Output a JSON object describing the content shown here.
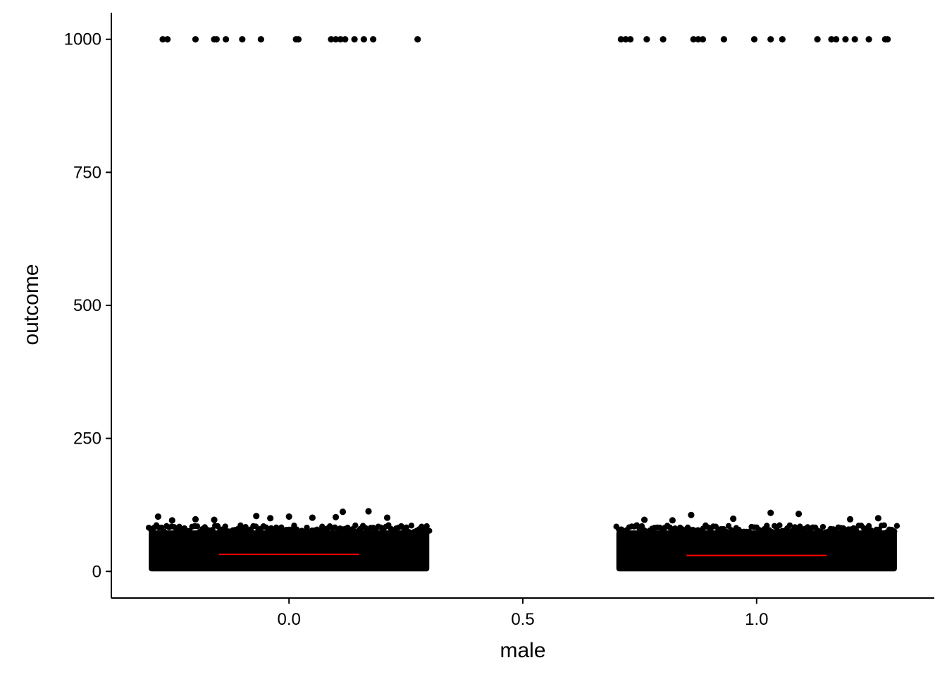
{
  "chart_data": {
    "type": "scatter",
    "title": "",
    "xlabel": "male",
    "ylabel": "outcome",
    "xlim": [
      -0.38,
      1.38
    ],
    "ylim": [
      -50,
      1050
    ],
    "x_ticks": [
      {
        "value": 0.0,
        "label": "0.0"
      },
      {
        "value": 0.5,
        "label": "0.5"
      },
      {
        "value": 1.0,
        "label": "1.0"
      }
    ],
    "y_ticks": [
      {
        "value": 0,
        "label": "0"
      },
      {
        "value": 250,
        "label": "250"
      },
      {
        "value": 500,
        "label": "500"
      },
      {
        "value": 750,
        "label": "750"
      },
      {
        "value": 1000,
        "label": "1000"
      }
    ],
    "grid": false,
    "groups": [
      {
        "x_center": 0,
        "jitter_range": [
          -0.3,
          0.3
        ],
        "dense_range": [
          0,
          85
        ],
        "mean": 32,
        "mean_line_range": [
          -0.15,
          0.15
        ],
        "outlier_y": 1000,
        "outlier_x": [
          -0.27,
          -0.26,
          -0.2,
          -0.16,
          -0.155,
          -0.135,
          -0.1,
          -0.06,
          0.015,
          0.02,
          0.09,
          0.1,
          0.11,
          0.12,
          0.14,
          0.16,
          0.18,
          0.275
        ],
        "upper_points": [
          {
            "x": -0.28,
            "y": 103
          },
          {
            "x": -0.25,
            "y": 96
          },
          {
            "x": -0.2,
            "y": 98
          },
          {
            "x": -0.16,
            "y": 97
          },
          {
            "x": -0.07,
            "y": 104
          },
          {
            "x": -0.04,
            "y": 100
          },
          {
            "x": 0.0,
            "y": 103
          },
          {
            "x": 0.05,
            "y": 101
          },
          {
            "x": 0.1,
            "y": 102
          },
          {
            "x": 0.115,
            "y": 112
          },
          {
            "x": 0.17,
            "y": 113
          },
          {
            "x": 0.21,
            "y": 101
          }
        ]
      },
      {
        "x_center": 1,
        "jitter_range": [
          0.7,
          1.3
        ],
        "dense_range": [
          0,
          85
        ],
        "mean": 30,
        "mean_line_range": [
          0.85,
          1.15
        ],
        "outlier_y": 1000,
        "outlier_x": [
          0.71,
          0.72,
          0.73,
          0.765,
          0.8,
          0.865,
          0.875,
          0.885,
          0.93,
          0.995,
          1.03,
          1.055,
          1.13,
          1.16,
          1.17,
          1.19,
          1.21,
          1.24,
          1.275,
          1.28
        ],
        "upper_points": [
          {
            "x": 0.76,
            "y": 97
          },
          {
            "x": 0.82,
            "y": 96
          },
          {
            "x": 0.86,
            "y": 106
          },
          {
            "x": 0.95,
            "y": 99
          },
          {
            "x": 1.03,
            "y": 110
          },
          {
            "x": 1.09,
            "y": 108
          },
          {
            "x": 1.2,
            "y": 98
          },
          {
            "x": 1.26,
            "y": 100
          }
        ]
      }
    ],
    "point_color": "#000000",
    "mean_line_color": "#ff0000",
    "axis_color": "#000000"
  }
}
